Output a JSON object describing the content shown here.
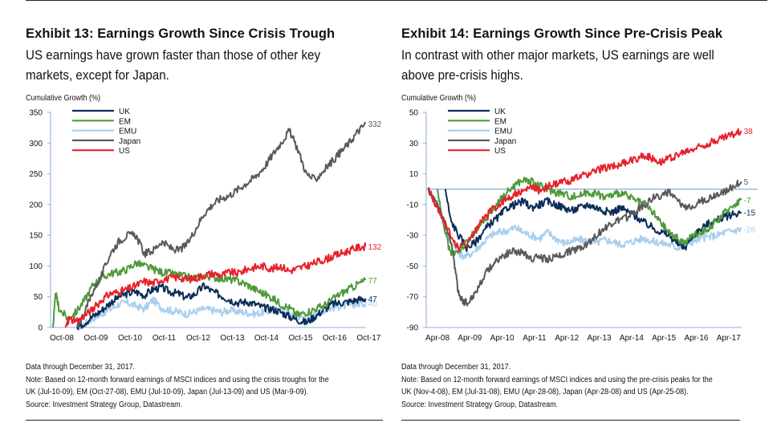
{
  "chart_data": [
    {
      "type": "line",
      "title": "Exhibit 13: Earnings Growth Since Crisis Trough",
      "subtitle": "US earnings have grown faster than those of other key markets, except for Japan.",
      "ylabel": "Cumulative Growth (%)",
      "xlabel": "",
      "ylim": [
        0,
        350
      ],
      "yticks": [
        0,
        50,
        100,
        150,
        200,
        250,
        300,
        350
      ],
      "xlim": [
        2008.75,
        2018.0
      ],
      "xticks": [
        {
          "x": 2008.75,
          "label": "Oct-08"
        },
        {
          "x": 2009.75,
          "label": "Oct-09"
        },
        {
          "x": 2010.75,
          "label": "Oct-10"
        },
        {
          "x": 2011.75,
          "label": "Oct-11"
        },
        {
          "x": 2012.75,
          "label": "Oct-12"
        },
        {
          "x": 2013.75,
          "label": "Oct-13"
        },
        {
          "x": 2014.75,
          "label": "Oct-14"
        },
        {
          "x": 2015.75,
          "label": "Oct-15"
        },
        {
          "x": 2016.75,
          "label": "Oct-16"
        },
        {
          "x": 2017.75,
          "label": "Oct-17"
        }
      ],
      "legend_position": "top-left",
      "reference_line": null,
      "series": [
        {
          "name": "UK",
          "color": "#0b2e59",
          "end_label": "47",
          "x": [
            2009.53,
            2009.75,
            2010.0,
            2010.25,
            2010.5,
            2010.75,
            2011.0,
            2011.25,
            2011.5,
            2011.75,
            2012.0,
            2012.25,
            2012.5,
            2012.75,
            2013.0,
            2013.25,
            2013.5,
            2013.75,
            2014.0,
            2014.25,
            2014.5,
            2014.75,
            2015.0,
            2015.25,
            2015.5,
            2015.75,
            2016.0,
            2016.25,
            2016.5,
            2016.75,
            2017.0,
            2017.25,
            2017.5,
            2017.75,
            2017.99
          ],
          "y": [
            0,
            8,
            18,
            28,
            40,
            50,
            55,
            58,
            52,
            62,
            65,
            58,
            55,
            48,
            55,
            68,
            58,
            52,
            45,
            40,
            42,
            38,
            32,
            30,
            25,
            18,
            12,
            8,
            18,
            28,
            38,
            40,
            42,
            45,
            47
          ]
        },
        {
          "name": "EM",
          "color": "#4e9a3a",
          "end_label": "77",
          "x": [
            2008.82,
            2008.9,
            2009.0,
            2009.25,
            2009.5,
            2009.75,
            2010.0,
            2010.25,
            2010.5,
            2010.75,
            2011.0,
            2011.25,
            2011.5,
            2011.75,
            2012.0,
            2012.25,
            2012.5,
            2012.75,
            2013.0,
            2013.25,
            2013.5,
            2013.75,
            2014.0,
            2014.25,
            2014.5,
            2014.75,
            2015.0,
            2015.25,
            2015.5,
            2015.75,
            2016.0,
            2016.25,
            2016.5,
            2016.75,
            2017.0,
            2017.25,
            2017.5,
            2017.75,
            2017.99
          ],
          "y": [
            0,
            55,
            30,
            15,
            25,
            45,
            70,
            80,
            88,
            90,
            95,
            105,
            100,
            95,
            90,
            88,
            85,
            82,
            80,
            85,
            82,
            80,
            78,
            75,
            70,
            62,
            55,
            48,
            38,
            32,
            20,
            25,
            30,
            35,
            45,
            55,
            62,
            70,
            77
          ]
        },
        {
          "name": "EMU",
          "color": "#a9cfee",
          "end_label": "40",
          "x": [
            2009.53,
            2009.75,
            2010.0,
            2010.25,
            2010.5,
            2010.75,
            2011.0,
            2011.25,
            2011.5,
            2011.75,
            2012.0,
            2012.25,
            2012.5,
            2012.75,
            2013.0,
            2013.25,
            2013.5,
            2013.75,
            2014.0,
            2014.25,
            2014.5,
            2014.75,
            2015.0,
            2015.25,
            2015.5,
            2015.75,
            2016.0,
            2016.25,
            2016.5,
            2016.75,
            2017.0,
            2017.25,
            2017.5,
            2017.75,
            2017.99
          ],
          "y": [
            0,
            5,
            15,
            22,
            30,
            38,
            40,
            35,
            30,
            45,
            32,
            28,
            25,
            22,
            26,
            30,
            28,
            25,
            28,
            26,
            24,
            22,
            25,
            28,
            30,
            22,
            18,
            15,
            22,
            28,
            32,
            35,
            36,
            38,
            40
          ]
        },
        {
          "name": "Japan",
          "color": "#58595b",
          "end_label": "332",
          "x": [
            2009.53,
            2009.75,
            2010.0,
            2010.25,
            2010.5,
            2010.75,
            2011.0,
            2011.25,
            2011.5,
            2011.75,
            2012.0,
            2012.25,
            2012.5,
            2012.75,
            2013.0,
            2013.25,
            2013.5,
            2013.75,
            2014.0,
            2014.25,
            2014.5,
            2014.75,
            2015.0,
            2015.25,
            2015.5,
            2015.75,
            2016.0,
            2016.25,
            2016.5,
            2016.75,
            2017.0,
            2017.25,
            2017.5,
            2017.75,
            2017.99
          ],
          "y": [
            0,
            25,
            60,
            85,
            120,
            140,
            150,
            150,
            120,
            125,
            140,
            130,
            125,
            135,
            160,
            185,
            200,
            210,
            215,
            225,
            235,
            245,
            260,
            280,
            300,
            320,
            290,
            250,
            240,
            255,
            270,
            285,
            300,
            318,
            332
          ]
        },
        {
          "name": "US",
          "color": "#e8222b",
          "end_label": "132",
          "x": [
            2009.19,
            2009.3,
            2009.5,
            2009.75,
            2010.0,
            2010.25,
            2010.5,
            2010.75,
            2011.0,
            2011.25,
            2011.5,
            2011.75,
            2012.0,
            2012.25,
            2012.5,
            2012.75,
            2013.0,
            2013.25,
            2013.5,
            2013.75,
            2014.0,
            2014.25,
            2014.5,
            2014.75,
            2015.0,
            2015.25,
            2015.5,
            2015.75,
            2016.0,
            2016.25,
            2016.5,
            2016.75,
            2017.0,
            2017.25,
            2017.5,
            2017.75,
            2017.99
          ],
          "y": [
            0,
            15,
            8,
            20,
            30,
            45,
            55,
            58,
            62,
            68,
            75,
            72,
            78,
            80,
            82,
            78,
            80,
            85,
            88,
            85,
            90,
            88,
            95,
            98,
            100,
            95,
            100,
            92,
            96,
            100,
            105,
            110,
            115,
            120,
            125,
            130,
            132
          ]
        }
      ]
    },
    {
      "type": "line",
      "title": "Exhibit 14: Earnings Growth Since Pre-Crisis Peak",
      "subtitle": "In contrast with other major markets, US earnings are well above pre-crisis highs.",
      "ylabel": "Cumulative Growth (%)",
      "xlabel": "",
      "ylim": [
        -90,
        50
      ],
      "yticks": [
        -90,
        -70,
        -50,
        -30,
        -10,
        10,
        30,
        50
      ],
      "xlim": [
        2008.25,
        2018.0
      ],
      "xticks": [
        {
          "x": 2008.25,
          "label": "Apr-08"
        },
        {
          "x": 2009.25,
          "label": "Apr-09"
        },
        {
          "x": 2010.25,
          "label": "Apr-10"
        },
        {
          "x": 2011.25,
          "label": "Apr-11"
        },
        {
          "x": 2012.25,
          "label": "Apr-12"
        },
        {
          "x": 2013.25,
          "label": "Apr-13"
        },
        {
          "x": 2014.25,
          "label": "Apr-14"
        },
        {
          "x": 2015.25,
          "label": "Apr-15"
        },
        {
          "x": 2016.25,
          "label": "Apr-16"
        },
        {
          "x": 2017.25,
          "label": "Apr-17"
        }
      ],
      "legend_position": "top-left",
      "reference_line": 0,
      "series": [
        {
          "name": "UK",
          "color": "#0b2e59",
          "end_label": "-15",
          "x": [
            2008.84,
            2009.0,
            2009.25,
            2009.5,
            2009.75,
            2010.0,
            2010.25,
            2010.5,
            2010.75,
            2011.0,
            2011.25,
            2011.5,
            2011.75,
            2012.0,
            2012.25,
            2012.5,
            2012.75,
            2013.0,
            2013.25,
            2013.5,
            2013.75,
            2014.0,
            2014.25,
            2014.5,
            2014.75,
            2015.0,
            2015.25,
            2015.5,
            2015.75,
            2016.0,
            2016.25,
            2016.5,
            2016.75,
            2017.0,
            2017.25,
            2017.5,
            2017.75,
            2017.99
          ],
          "y": [
            0,
            -20,
            -30,
            -38,
            -35,
            -28,
            -22,
            -18,
            -12,
            -10,
            -8,
            -12,
            -10,
            -8,
            -10,
            -12,
            -14,
            -12,
            -10,
            -12,
            -14,
            -15,
            -12,
            -15,
            -18,
            -22,
            -25,
            -28,
            -30,
            -35,
            -38,
            -30,
            -26,
            -22,
            -20,
            -18,
            -16,
            -15
          ]
        },
        {
          "name": "EM",
          "color": "#4e9a3a",
          "end_label": "-7",
          "x": [
            2008.58,
            2008.8,
            2009.0,
            2009.25,
            2009.5,
            2009.75,
            2010.0,
            2010.25,
            2010.5,
            2010.75,
            2011.0,
            2011.25,
            2011.5,
            2011.75,
            2012.0,
            2012.25,
            2012.5,
            2012.75,
            2013.0,
            2013.25,
            2013.5,
            2013.75,
            2014.0,
            2014.25,
            2014.5,
            2014.75,
            2015.0,
            2015.25,
            2015.5,
            2015.75,
            2016.0,
            2016.25,
            2016.5,
            2016.75,
            2017.0,
            2017.25,
            2017.5,
            2017.75,
            2017.99
          ],
          "y": [
            0,
            -25,
            -42,
            -40,
            -35,
            -28,
            -22,
            -15,
            -8,
            -2,
            3,
            6,
            5,
            2,
            0,
            -2,
            -3,
            -5,
            -4,
            -2,
            -3,
            -5,
            -4,
            -2,
            -5,
            -8,
            -10,
            -15,
            -22,
            -28,
            -32,
            -35,
            -30,
            -28,
            -25,
            -20,
            -15,
            -10,
            -7
          ]
        },
        {
          "name": "EMU",
          "color": "#a9cfee",
          "end_label": "-26",
          "x": [
            2008.32,
            2008.6,
            2008.9,
            2009.25,
            2009.5,
            2009.75,
            2010.0,
            2010.25,
            2010.5,
            2010.75,
            2011.0,
            2011.25,
            2011.5,
            2011.75,
            2012.0,
            2012.25,
            2012.5,
            2012.75,
            2013.0,
            2013.25,
            2013.5,
            2013.75,
            2014.0,
            2014.25,
            2014.5,
            2014.75,
            2015.0,
            2015.25,
            2015.5,
            2015.75,
            2016.0,
            2016.25,
            2016.5,
            2016.75,
            2017.0,
            2017.25,
            2017.5,
            2017.75,
            2017.99
          ],
          "y": [
            0,
            -10,
            -30,
            -42,
            -44,
            -40,
            -35,
            -30,
            -28,
            -27,
            -25,
            -28,
            -30,
            -32,
            -28,
            -32,
            -35,
            -34,
            -33,
            -34,
            -35,
            -33,
            -34,
            -36,
            -35,
            -33,
            -32,
            -34,
            -35,
            -36,
            -38,
            -36,
            -34,
            -32,
            -31,
            -30,
            -28,
            -27,
            -26
          ]
        },
        {
          "name": "Japan",
          "color": "#58595b",
          "end_label": "5",
          "x": [
            2008.32,
            2008.6,
            2008.9,
            2009.1,
            2009.25,
            2009.4,
            2009.53,
            2009.75,
            2010.0,
            2010.25,
            2010.5,
            2010.75,
            2011.0,
            2011.25,
            2011.5,
            2011.75,
            2012.0,
            2012.25,
            2012.5,
            2012.75,
            2013.0,
            2013.25,
            2013.5,
            2013.75,
            2014.0,
            2014.25,
            2014.5,
            2014.75,
            2015.0,
            2015.25,
            2015.5,
            2015.75,
            2016.0,
            2016.25,
            2016.5,
            2016.75,
            2017.0,
            2017.25,
            2017.5,
            2017.75,
            2017.99
          ],
          "y": [
            0,
            -10,
            -25,
            -45,
            -68,
            -73,
            -74,
            -68,
            -58,
            -50,
            -45,
            -42,
            -40,
            -42,
            -45,
            -44,
            -46,
            -44,
            -42,
            -40,
            -38,
            -35,
            -30,
            -26,
            -22,
            -20,
            -18,
            -14,
            -10,
            -6,
            -4,
            -2,
            -8,
            -12,
            -10,
            -8,
            -6,
            -3,
            -1,
            2,
            5
          ]
        },
        {
          "name": "US",
          "color": "#e8222b",
          "end_label": "38",
          "x": [
            2008.31,
            2008.5,
            2008.75,
            2009.0,
            2009.25,
            2009.5,
            2009.75,
            2010.0,
            2010.25,
            2010.5,
            2010.75,
            2011.0,
            2011.25,
            2011.5,
            2011.75,
            2012.0,
            2012.25,
            2012.5,
            2012.75,
            2013.0,
            2013.25,
            2013.5,
            2013.75,
            2014.0,
            2014.25,
            2014.5,
            2014.75,
            2015.0,
            2015.25,
            2015.5,
            2015.75,
            2016.0,
            2016.25,
            2016.5,
            2016.75,
            2017.0,
            2017.25,
            2017.5,
            2017.75,
            2017.99
          ],
          "y": [
            0,
            -8,
            -20,
            -30,
            -38,
            -35,
            -28,
            -20,
            -14,
            -10,
            -6,
            -3,
            -2,
            2,
            -1,
            2,
            3,
            5,
            6,
            8,
            10,
            12,
            14,
            15,
            16,
            18,
            20,
            22,
            20,
            18,
            20,
            22,
            24,
            26,
            28,
            30,
            32,
            34,
            36,
            38
          ]
        }
      ]
    }
  ],
  "left": {
    "notes": [
      "Data through December 31, 2017.",
      "Note: Based on 12-month forward earnings of MSCI indices and using the crisis troughs for the",
      "UK (Jul-10-09), EM (Oct-27-08), EMU (Jul-10-09), Japan (Jul-13-09) and US (Mar-9-09).",
      "Source: Investment Strategy Group, Datastream."
    ]
  },
  "right": {
    "notes": [
      "Data through December 31, 2017.",
      "Note: Based on 12-month forward earnings of MSCI indices and using the pre-crisis peaks for the",
      "UK (Nov-4-08), EM (Jul-31-08), EMU (Apr-28-08), Japan (Apr-28-08) and US (Apr-25-08).",
      "Source: Investment Strategy Group, Datastream."
    ]
  },
  "colors": {
    "axis": "#8eaed6",
    "reference_line": "#6f94c9"
  }
}
